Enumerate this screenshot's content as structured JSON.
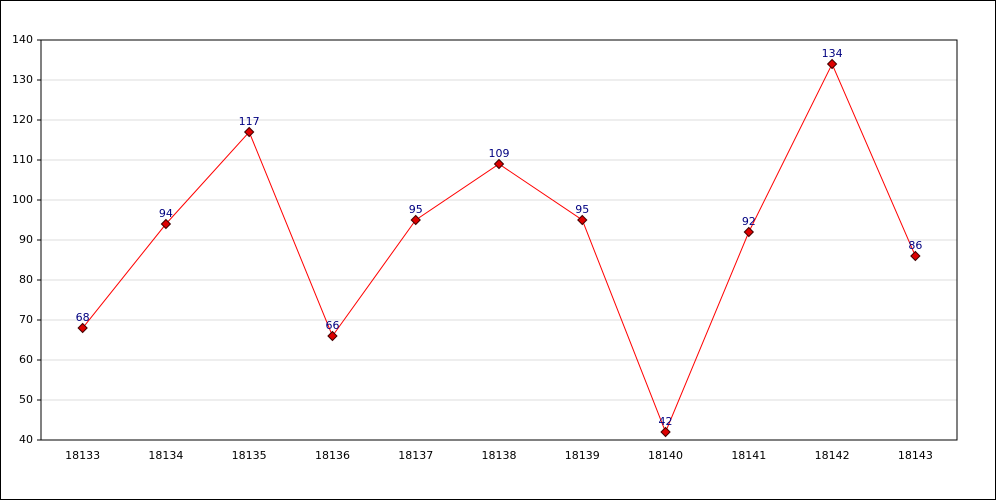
{
  "chart_data": {
    "type": "line",
    "categories": [
      "18133",
      "18134",
      "18135",
      "18136",
      "18137",
      "18138",
      "18139",
      "18140",
      "18141",
      "18142",
      "18143"
    ],
    "values": [
      68,
      94,
      117,
      66,
      95,
      109,
      95,
      42,
      92,
      134,
      86
    ],
    "color": "#ff0000",
    "marker_color": "#dd0000",
    "ylim": [
      40,
      140
    ],
    "yticks": [
      40,
      50,
      60,
      70,
      80,
      90,
      100,
      110,
      120,
      130,
      140
    ],
    "grid": true
  }
}
